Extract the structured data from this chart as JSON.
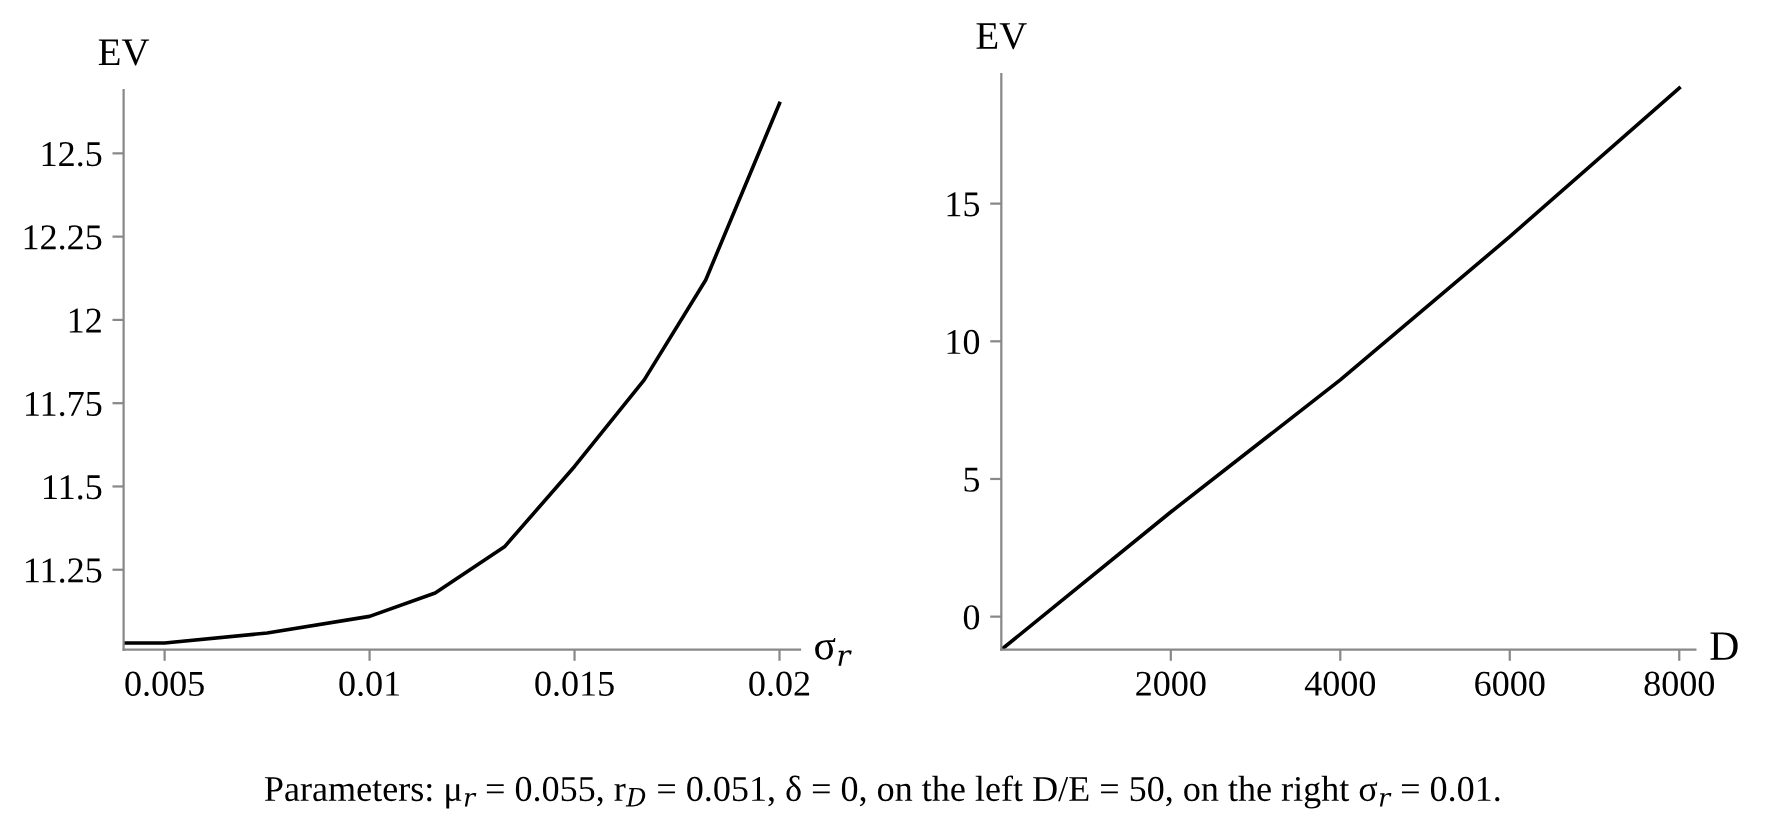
{
  "chart_data": [
    {
      "type": "line",
      "xlabel": "σ$_{r}$",
      "ylabel": "EV",
      "x": [
        0.004,
        0.005,
        0.0075,
        0.01,
        0.0116,
        0.0133,
        0.015,
        0.0167,
        0.0182,
        0.02
      ],
      "series": [
        {
          "color": "#000000",
          "values": [
            11.03,
            11.03,
            11.06,
            11.11,
            11.18,
            11.32,
            11.56,
            11.82,
            12.12,
            12.65
          ]
        }
      ],
      "xlim": [
        0.004,
        0.0205
      ],
      "ylim": [
        11.01,
        12.69
      ],
      "xticks": [
        0.005,
        0.01,
        0.015,
        0.02
      ],
      "yticks": [
        11.25,
        11.5,
        11.75,
        12,
        12.25,
        12.5
      ],
      "grid": false,
      "legend": false,
      "marker": "none",
      "line_style": "solid"
    },
    {
      "type": "line",
      "xlabel": "D",
      "ylabel": "EV",
      "x": [
        0,
        2000,
        4000,
        6000,
        8000
      ],
      "series": [
        {
          "color": "#000000",
          "values": [
            -1.2,
            3.8,
            8.6,
            13.8,
            19.2
          ]
        }
      ],
      "xlim": [
        0,
        8190
      ],
      "ylim": [
        -1.2,
        19.7
      ],
      "xticks": [
        2000,
        4000,
        6000,
        8000
      ],
      "yticks": [
        0,
        5,
        10,
        15
      ],
      "grid": false,
      "legend": false,
      "marker": "none",
      "line_style": "solid",
      "annotations": [
        "Parameters: μ$_{r}$ = 0.055, r$_{D}$ = 0.051, δ = 0, on the left D/E = 50, on the right σ$_{r}$ = 0.01."
      ]
    }
  ]
}
